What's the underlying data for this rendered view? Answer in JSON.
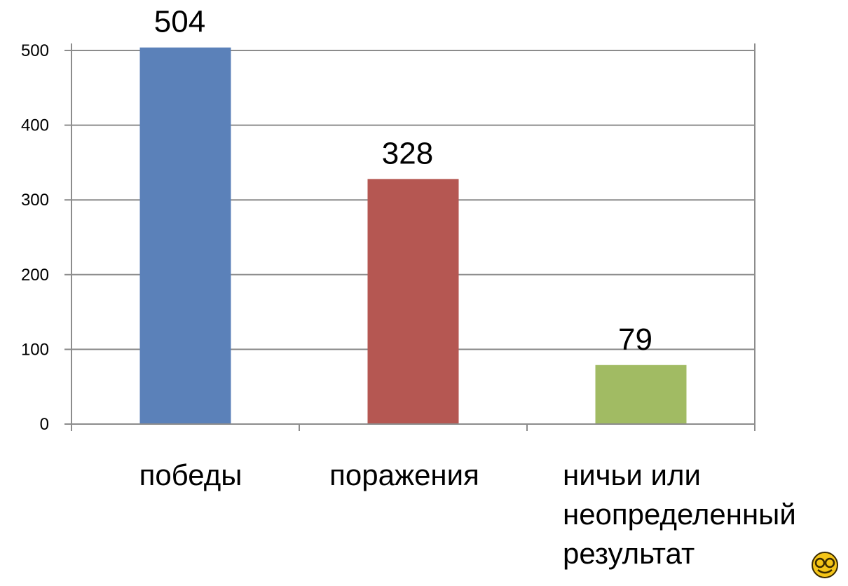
{
  "chart_data": {
    "type": "bar",
    "categories": [
      [
        "победы"
      ],
      [
        "поражения"
      ],
      [
        "ничьи или",
        "неопределенный",
        "результат"
      ]
    ],
    "values": [
      504,
      328,
      79
    ],
    "colors": [
      "#5b81b9",
      "#b55752",
      "#a1bb63"
    ],
    "ylim": [
      0,
      500
    ],
    "yticks": [
      0,
      100,
      200,
      300,
      400,
      500
    ],
    "grid": true,
    "title": "",
    "xlabel": "",
    "ylabel": ""
  },
  "logo": {
    "icon": "smiley-logo-icon",
    "color": "#f5c518"
  }
}
